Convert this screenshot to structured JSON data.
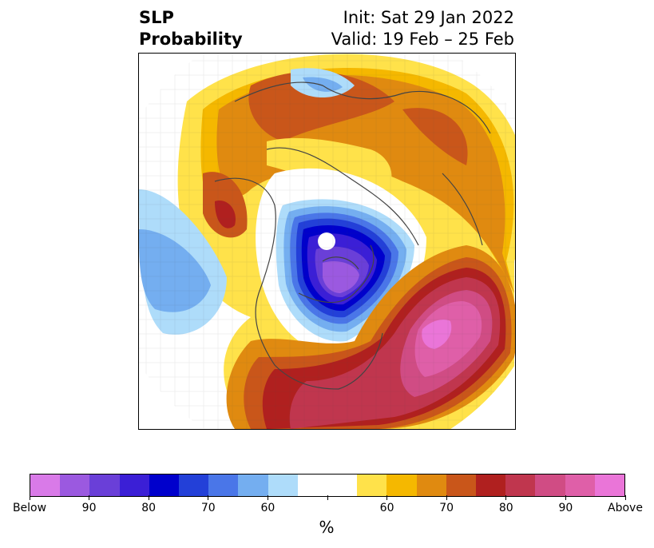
{
  "title": {
    "left_lines": [
      "SLP",
      "Probability"
    ],
    "right_lines": [
      "Init: Sat 29 Jan 2022",
      "Valid: 19 Feb – 25 Feb"
    ]
  },
  "map": {
    "projection": "north-polar-stereographic",
    "variable": "SLP"
  },
  "colorbar": {
    "colors": [
      "#d97ae8",
      "#9b59e0",
      "#6a3fd8",
      "#3b1fd6",
      "#0000cc",
      "#2340d8",
      "#4a76e8",
      "#74aef0",
      "#aedcfa",
      "#ffffff",
      "#ffffff",
      "#ffe24a",
      "#f5b800",
      "#e08a10",
      "#c9561a",
      "#b0201f",
      "#c0364e",
      "#d04c84",
      "#df5fa8",
      "#ea75d8"
    ],
    "tick_labels": [
      "Below",
      "90",
      "80",
      "70",
      "60",
      "",
      "60",
      "70",
      "80",
      "90",
      "Above"
    ],
    "unit": "%"
  }
}
